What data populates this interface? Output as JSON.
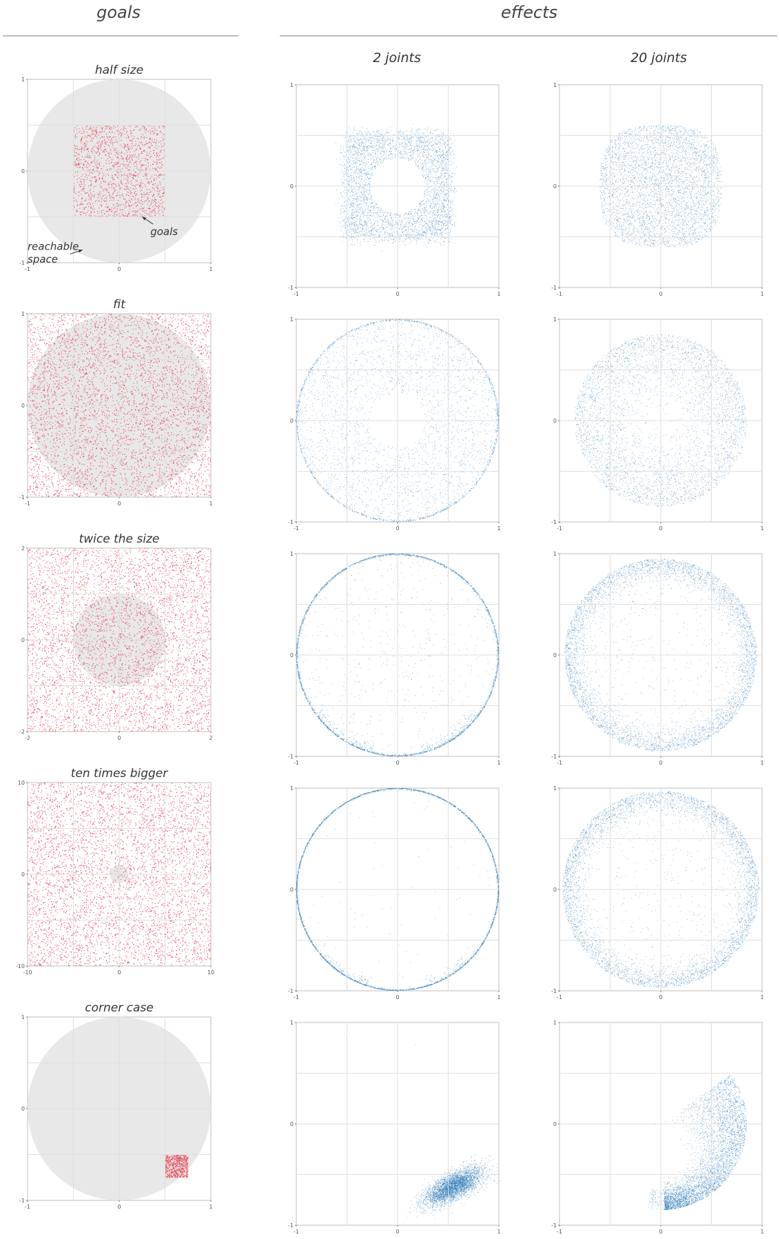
{
  "headers": {
    "goals": "goals",
    "effects": "effects",
    "two_joints": "2 joints",
    "twenty_joints": "20 joints"
  },
  "colors": {
    "goal_points": "#e8394a",
    "effect_points": "#2e7bb8",
    "reachable_disk": "#e8e8e8",
    "grid": "#dedede",
    "frame": "#bcbcbc"
  },
  "chart_data": [
    {
      "type": "scatter",
      "row": "half size",
      "column": "goals",
      "title": "half size",
      "xlim": [
        -1,
        1
      ],
      "ylim": [
        -1,
        1
      ],
      "ticks": [
        -1,
        0,
        1
      ],
      "reachable_space": {
        "center": [
          0,
          0
        ],
        "radius": 1
      },
      "goal_region": {
        "shape": "square",
        "x": [
          -0.5,
          0.5
        ],
        "y": [
          -0.5,
          0.5
        ]
      },
      "annotations": [
        {
          "text": "goals",
          "points_to": [
            0.25,
            -0.5
          ],
          "label_at": [
            0.34,
            -0.7
          ]
        },
        {
          "text": "reachable",
          "points_to": [
            -0.4,
            -0.86
          ],
          "label_at": [
            -1.0,
            -0.86
          ]
        },
        {
          "text": "space",
          "points_to": null,
          "label_at": [
            -1.0,
            -1.0
          ]
        }
      ]
    },
    {
      "type": "scatter",
      "row": "half size",
      "column": "2 joints",
      "xlim": [
        -1,
        1
      ],
      "ylim": [
        -1,
        1
      ],
      "ticks": [
        -1,
        0,
        1
      ],
      "distribution": {
        "shape": "square_with_hole",
        "half_width": 0.52,
        "hole_radius": 0.27,
        "center": [
          0,
          0
        ]
      }
    },
    {
      "type": "scatter",
      "row": "half size",
      "column": "20 joints",
      "xlim": [
        -1,
        1
      ],
      "ylim": [
        -1,
        1
      ],
      "ticks": [
        -1,
        0,
        1
      ],
      "distribution": {
        "shape": "rounded_square",
        "half_width": 0.6,
        "center": [
          0,
          0
        ]
      }
    },
    {
      "type": "scatter",
      "row": "fit",
      "column": "goals",
      "title": "fit",
      "xlim": [
        -1,
        1
      ],
      "ylim": [
        -1,
        1
      ],
      "ticks": [
        -1,
        0,
        1
      ],
      "reachable_space": {
        "center": [
          0,
          0
        ],
        "radius": 1
      },
      "goal_region": {
        "shape": "square",
        "x": [
          -1,
          1
        ],
        "y": [
          -1,
          1
        ]
      }
    },
    {
      "type": "scatter",
      "row": "fit",
      "column": "2 joints",
      "xlim": [
        -1,
        1
      ],
      "ylim": [
        -1,
        1
      ],
      "ticks": [
        -1,
        0,
        1
      ],
      "distribution": {
        "shape": "disk_with_hole_and_rim",
        "radius": 1.0,
        "hole_radius": 0.27
      }
    },
    {
      "type": "scatter",
      "row": "fit",
      "column": "20 joints",
      "xlim": [
        -1,
        1
      ],
      "ylim": [
        -1,
        1
      ],
      "ticks": [
        -1,
        0,
        1
      ],
      "distribution": {
        "shape": "disk_dense_edge",
        "radius": 0.85
      }
    },
    {
      "type": "scatter",
      "row": "twice the size",
      "column": "goals",
      "title": "twice the size",
      "xlim": [
        -2,
        2
      ],
      "ylim": [
        -2,
        2
      ],
      "ticks": [
        -2,
        0,
        2
      ],
      "reachable_space": {
        "center": [
          0,
          0
        ],
        "radius": 1
      },
      "goal_region": {
        "shape": "square",
        "x": [
          -2,
          2
        ],
        "y": [
          -2,
          2
        ]
      }
    },
    {
      "type": "scatter",
      "row": "twice the size",
      "column": "2 joints",
      "xlim": [
        -1,
        1
      ],
      "ylim": [
        -1,
        1
      ],
      "ticks": [
        -1,
        0,
        1
      ],
      "distribution": {
        "shape": "ring_sparse_interior",
        "radius": 1.0
      }
    },
    {
      "type": "scatter",
      "row": "twice the size",
      "column": "20 joints",
      "xlim": [
        -1,
        1
      ],
      "ylim": [
        -1,
        1
      ],
      "ticks": [
        -1,
        0,
        1
      ],
      "distribution": {
        "shape": "thick_ring",
        "radius": 0.95
      }
    },
    {
      "type": "scatter",
      "row": "ten times bigger",
      "column": "goals",
      "title": "ten times bigger",
      "xlim": [
        -10,
        10
      ],
      "ylim": [
        -10,
        10
      ],
      "ticks": [
        -10,
        0,
        10
      ],
      "reachable_space": {
        "center": [
          0,
          0
        ],
        "radius": 1
      },
      "goal_region": {
        "shape": "square",
        "x": [
          -10,
          10
        ],
        "y": [
          -10,
          10
        ]
      }
    },
    {
      "type": "scatter",
      "row": "ten times bigger",
      "column": "2 joints",
      "xlim": [
        -1,
        1
      ],
      "ylim": [
        -1,
        1
      ],
      "ticks": [
        -1,
        0,
        1
      ],
      "distribution": {
        "shape": "ring_empty_interior",
        "radius": 1.0
      }
    },
    {
      "type": "scatter",
      "row": "ten times bigger",
      "column": "20 joints",
      "xlim": [
        -1,
        1
      ],
      "ylim": [
        -1,
        1
      ],
      "ticks": [
        -1,
        0,
        1
      ],
      "distribution": {
        "shape": "thick_ring",
        "radius": 0.97
      }
    },
    {
      "type": "scatter",
      "row": "corner case",
      "column": "goals",
      "title": "corner case",
      "xlim": [
        -1,
        1
      ],
      "ylim": [
        -1,
        1
      ],
      "ticks": [
        -1,
        0,
        1
      ],
      "reachable_space": {
        "center": [
          0,
          0
        ],
        "radius": 1
      },
      "goal_region": {
        "shape": "square",
        "x": [
          0.5,
          0.75
        ],
        "y": [
          -0.75,
          -0.5
        ]
      }
    },
    {
      "type": "scatter",
      "row": "corner case",
      "column": "2 joints",
      "xlim": [
        -1,
        1
      ],
      "ylim": [
        -1,
        1
      ],
      "ticks": [
        -1,
        0,
        1
      ],
      "distribution": {
        "shape": "elongated_blob",
        "center": [
          0.55,
          -0.62
        ]
      }
    },
    {
      "type": "scatter",
      "row": "corner case",
      "column": "20 joints",
      "xlim": [
        -1,
        1
      ],
      "ylim": [
        -1,
        1
      ],
      "ticks": [
        -1,
        0,
        1
      ],
      "distribution": {
        "shape": "crescent",
        "center": [
          0.55,
          -0.55
        ]
      }
    }
  ]
}
